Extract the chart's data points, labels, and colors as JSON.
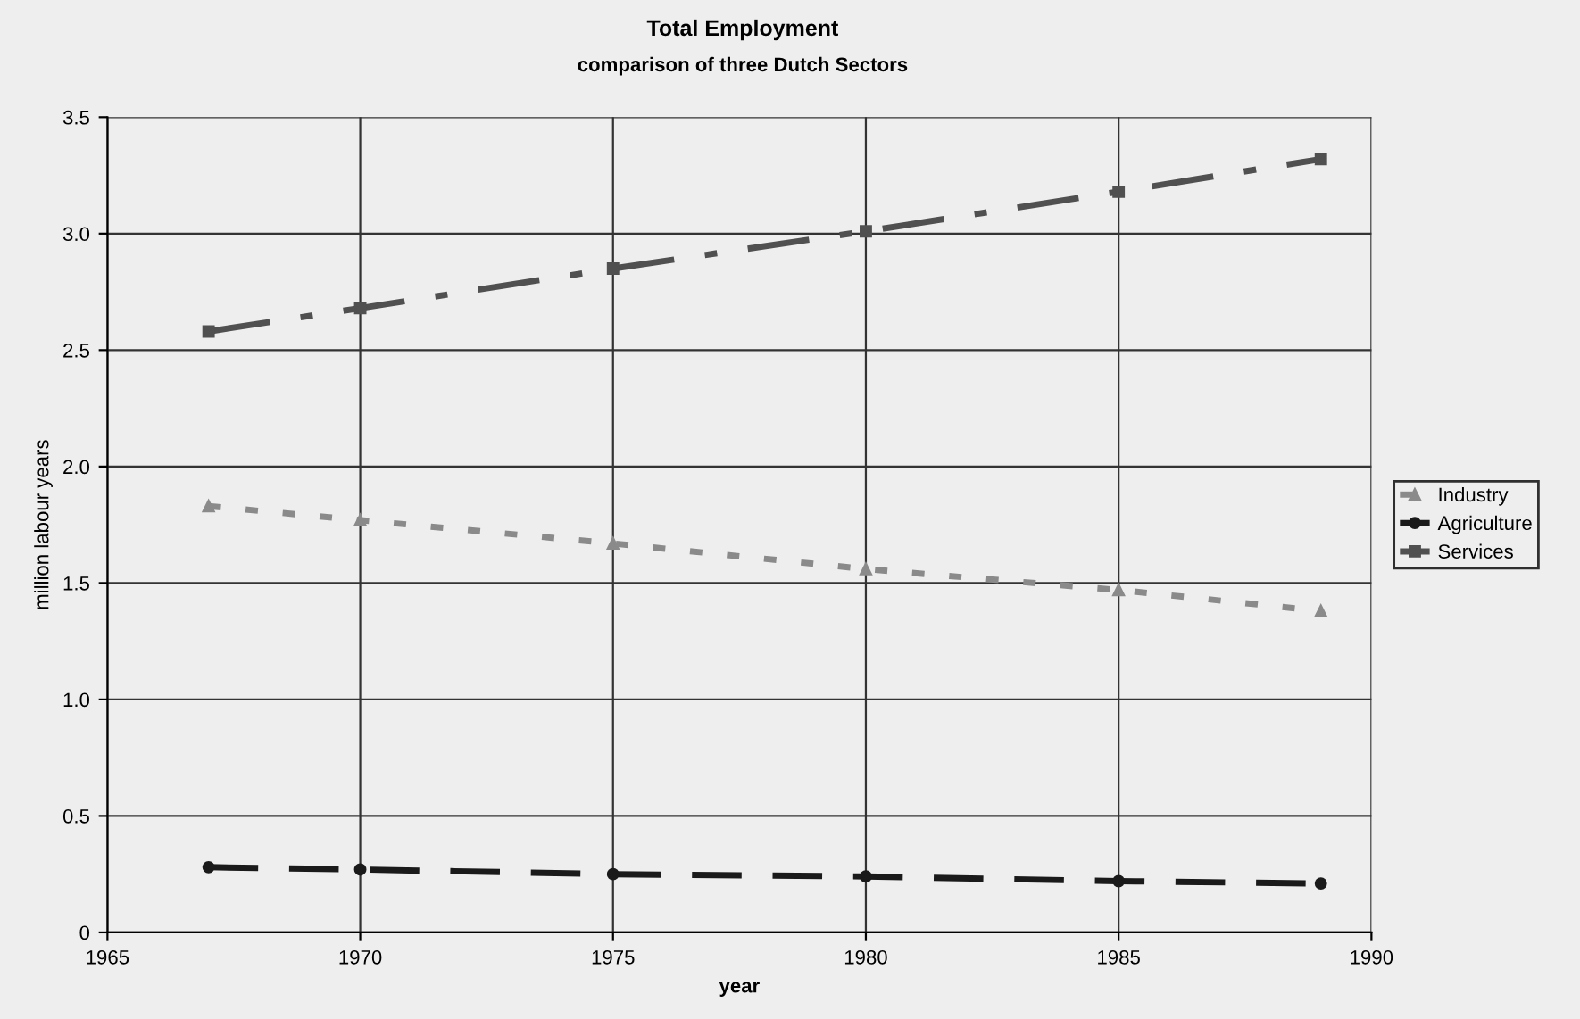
{
  "chart_data": {
    "type": "line",
    "title": "Total Employment",
    "subtitle": "comparison of three Dutch Sectors",
    "xlabel": "year",
    "ylabel": "million labour years",
    "xlim": [
      1965,
      1990
    ],
    "xticks": [
      1965,
      1970,
      1975,
      1980,
      1985,
      1990
    ],
    "ylim": [
      0,
      3.5
    ],
    "yticks": [
      {
        "value": 0,
        "label": "0"
      },
      {
        "value": 0.5,
        "label": "0.5"
      },
      {
        "value": 1.0,
        "label": "1.0"
      },
      {
        "value": 1.5,
        "label": "1.5"
      },
      {
        "value": 2.0,
        "label": "2.0"
      },
      {
        "value": 2.5,
        "label": "2.5"
      },
      {
        "value": 3.0,
        "label": "3.0"
      },
      {
        "value": 3.5,
        "label": "3.5"
      }
    ],
    "grid": true,
    "legend": "right",
    "series": [
      {
        "name": "Industry",
        "color": "#8a8a8a",
        "marker": "triangle",
        "line_style": "dotted",
        "x": [
          1967,
          1970,
          1975,
          1980,
          1985,
          1989
        ],
        "values": [
          1.83,
          1.77,
          1.67,
          1.56,
          1.47,
          1.38
        ]
      },
      {
        "name": "Agriculture",
        "color": "#1a1a1a",
        "marker": "circle",
        "line_style": "dashed",
        "x": [
          1967,
          1970,
          1975,
          1980,
          1985,
          1989
        ],
        "values": [
          0.28,
          0.27,
          0.25,
          0.24,
          0.22,
          0.21
        ]
      },
      {
        "name": "Services",
        "color": "#505050",
        "marker": "square",
        "line_style": "dashdot",
        "x": [
          1967,
          1970,
          1975,
          1980,
          1985,
          1989
        ],
        "values": [
          2.58,
          2.68,
          2.85,
          3.01,
          3.18,
          3.32
        ]
      }
    ]
  }
}
